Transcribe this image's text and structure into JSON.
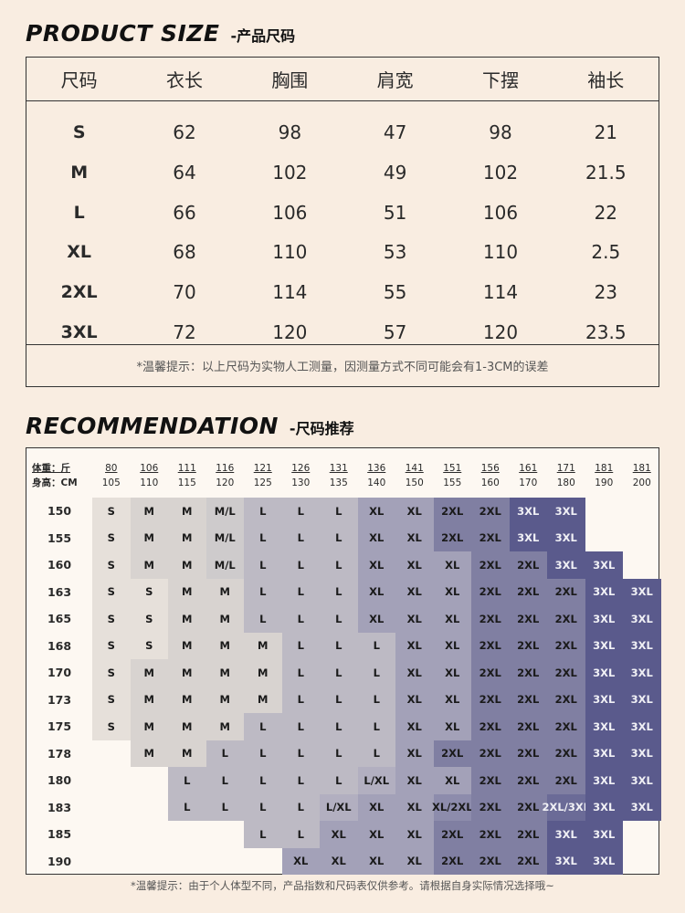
{
  "size_section": {
    "title_en": "PRODUCT SIZE",
    "title_cn": "-产品尺码",
    "headers": [
      "尺码",
      "衣长",
      "胸围",
      "肩宽",
      "下摆",
      "袖长"
    ],
    "rows": [
      [
        "S",
        "62",
        "98",
        "47",
        "98",
        "21"
      ],
      [
        "M",
        "64",
        "102",
        "49",
        "102",
        "21.5"
      ],
      [
        "L",
        "66",
        "106",
        "51",
        "106",
        "22"
      ],
      [
        "XL",
        "68",
        "110",
        "53",
        "110",
        "2.5"
      ],
      [
        "2XL",
        "70",
        "114",
        "55",
        "114",
        "23"
      ],
      [
        "3XL",
        "72",
        "120",
        "57",
        "120",
        "23.5"
      ]
    ],
    "note": "*温馨提示：以上尺码为实物人工测量，因测量方式不同可能会有1-3CM的误差"
  },
  "rec_section": {
    "title_en": "RECOMMENDATION",
    "title_cn": "-尺码推荐",
    "corner_weight": "体重：斤",
    "corner_height": "身高：CM",
    "weights": [
      [
        "80",
        "105"
      ],
      [
        "106",
        "110"
      ],
      [
        "111",
        "115"
      ],
      [
        "116",
        "120"
      ],
      [
        "121",
        "125"
      ],
      [
        "126",
        "130"
      ],
      [
        "131",
        "135"
      ],
      [
        "136",
        "140"
      ],
      [
        "141",
        "150"
      ],
      [
        "151",
        "155"
      ],
      [
        "156",
        "160"
      ],
      [
        "161",
        "170"
      ],
      [
        "171",
        "180"
      ],
      [
        "181",
        "190"
      ],
      [
        "181",
        "200"
      ]
    ],
    "heights": [
      "150",
      "155",
      "160",
      "163",
      "165",
      "168",
      "170",
      "173",
      "175",
      "178",
      "180",
      "183",
      "185",
      "190"
    ],
    "grid": [
      [
        "S",
        "M",
        "M",
        "M/L",
        "L",
        "L",
        "L",
        "XL",
        "XL",
        "2XL",
        "2XL",
        "3XL",
        "3XL",
        "",
        ""
      ],
      [
        "S",
        "M",
        "M",
        "M/L",
        "L",
        "L",
        "L",
        "XL",
        "XL",
        "2XL",
        "2XL",
        "3XL",
        "3XL",
        "",
        ""
      ],
      [
        "S",
        "M",
        "M",
        "M/L",
        "L",
        "L",
        "L",
        "XL",
        "XL",
        "XL",
        "2XL",
        "2XL",
        "3XL",
        "3XL",
        ""
      ],
      [
        "S",
        "S",
        "M",
        "M",
        "L",
        "L",
        "L",
        "XL",
        "XL",
        "XL",
        "2XL",
        "2XL",
        "2XL",
        "3XL",
        "3XL"
      ],
      [
        "S",
        "S",
        "M",
        "M",
        "L",
        "L",
        "L",
        "XL",
        "XL",
        "XL",
        "2XL",
        "2XL",
        "2XL",
        "3XL",
        "3XL"
      ],
      [
        "S",
        "S",
        "M",
        "M",
        "M",
        "L",
        "L",
        "L",
        "XL",
        "XL",
        "2XL",
        "2XL",
        "2XL",
        "3XL",
        "3XL"
      ],
      [
        "S",
        "M",
        "M",
        "M",
        "M",
        "L",
        "L",
        "L",
        "XL",
        "XL",
        "2XL",
        "2XL",
        "2XL",
        "3XL",
        "3XL"
      ],
      [
        "S",
        "M",
        "M",
        "M",
        "M",
        "L",
        "L",
        "L",
        "XL",
        "XL",
        "2XL",
        "2XL",
        "2XL",
        "3XL",
        "3XL"
      ],
      [
        "S",
        "M",
        "M",
        "M",
        "L",
        "L",
        "L",
        "L",
        "XL",
        "XL",
        "2XL",
        "2XL",
        "2XL",
        "3XL",
        "3XL"
      ],
      [
        "",
        "M",
        "M",
        "L",
        "L",
        "L",
        "L",
        "L",
        "XL",
        "2XL",
        "2XL",
        "2XL",
        "2XL",
        "3XL",
        "3XL"
      ],
      [
        "",
        "",
        "L",
        "L",
        "L",
        "L",
        "L",
        "L/XL",
        "XL",
        "XL",
        "2XL",
        "2XL",
        "2XL",
        "3XL",
        "3XL"
      ],
      [
        "",
        "",
        "L",
        "L",
        "L",
        "L",
        "L/XL",
        "XL",
        "XL",
        "XL/2XL",
        "2XL",
        "2XL",
        "2XL/3XL",
        "3XL",
        "3XL"
      ],
      [
        "",
        "",
        "",
        "",
        "L",
        "L",
        "XL",
        "XL",
        "XL",
        "2XL",
        "2XL",
        "2XL",
        "3XL",
        "3XL",
        ""
      ],
      [
        "",
        "",
        "",
        "",
        "",
        "XL",
        "XL",
        "XL",
        "XL",
        "2XL",
        "2XL",
        "2XL",
        "3XL",
        "3XL",
        ""
      ]
    ],
    "colors": {
      "S": "#e6e0da",
      "M": "#d8d3d0",
      "M/L": "#cecbcc",
      "L": "#bdbac4",
      "L/XL": "#b2afc0",
      "XL": "#a3a1b8",
      "XL/2XL": "#8d8cac",
      "2XL": "#807fa2",
      "2XL/3XL": "#6b6b97",
      "3XL": "#5a5a8c"
    },
    "note": "*温馨提示：由于个人体型不同，产品指数和尺码表仅供参考。请根据自身实际情况选择哦~"
  }
}
